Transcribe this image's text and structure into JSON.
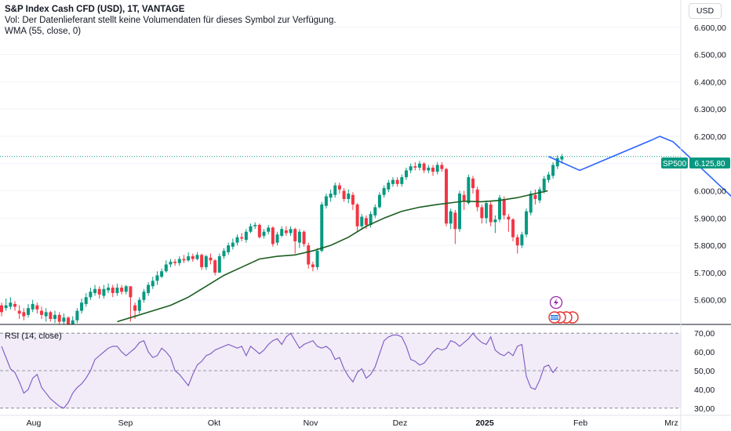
{
  "header": {
    "title": "S&P Index Cash CFD (USD), 1T, VANTAGE",
    "vol_note": "Vol: Der Datenlieferant stellt keine Volumendaten für dieses Symbol zur Verfügung.",
    "indicator": "WMA (55, close, 0)",
    "currency": "USD"
  },
  "rsi_panel": {
    "label": "RSI (14, close)"
  },
  "price_tag": {
    "symbol": "SP500",
    "price": "6.125,80"
  },
  "colors": {
    "up": "#089981",
    "down": "#f23645",
    "wma": "#1b5e20",
    "rsi": "#7e57c2",
    "rsi_band": "#ede7f6",
    "projection": "#2962ff",
    "tag": "#089981"
  },
  "event_icons": [
    "lightning-icon",
    "us-flag-icon"
  ],
  "chart_data": [
    {
      "type": "candlestick",
      "name": "S&P Index Cash CFD (USD), 1T, VANTAGE",
      "y_ticks": [
        "5.600,00",
        "5.700,00",
        "5.800,00",
        "5.900,00",
        "6.000,00",
        "6.100,00",
        "6.200,00",
        "6.300,00",
        "6.400,00",
        "6.500,00",
        "6.600,00"
      ],
      "y_range": [
        5510,
        6700
      ],
      "x_ticks": [
        {
          "label": "Aug",
          "bold": false
        },
        {
          "label": "Sep",
          "bold": false
        },
        {
          "label": "Okt",
          "bold": false
        },
        {
          "label": "Nov",
          "bold": false
        },
        {
          "label": "Dez",
          "bold": false
        },
        {
          "label": "2025",
          "bold": true
        },
        {
          "label": "Feb",
          "bold": false
        },
        {
          "label": "Mrz",
          "bold": false
        }
      ],
      "last_price": 6125.8,
      "candles": [
        [
          5580,
          5555,
          5590,
          5540
        ],
        [
          5570,
          5580,
          5605,
          5560
        ],
        [
          5575,
          5590,
          5610,
          5565
        ],
        [
          5585,
          5575,
          5595,
          5560
        ],
        [
          5560,
          5550,
          5580,
          5530
        ],
        [
          5555,
          5540,
          5570,
          5525
        ],
        [
          5545,
          5570,
          5585,
          5535
        ],
        [
          5565,
          5585,
          5600,
          5555
        ],
        [
          5580,
          5565,
          5590,
          5550
        ],
        [
          5560,
          5545,
          5575,
          5530
        ],
        [
          5540,
          5555,
          5570,
          5520
        ],
        [
          5555,
          5530,
          5560,
          5520
        ],
        [
          5530,
          5545,
          5560,
          5515
        ],
        [
          5545,
          5520,
          5555,
          5510
        ],
        [
          5520,
          5535,
          5550,
          5510
        ],
        [
          5535,
          5510,
          5540,
          5505
        ],
        [
          5510,
          5525,
          5540,
          5505
        ],
        [
          5525,
          5560,
          5570,
          5515
        ],
        [
          5560,
          5590,
          5605,
          5550
        ],
        [
          5585,
          5610,
          5625,
          5575
        ],
        [
          5610,
          5630,
          5645,
          5600
        ],
        [
          5625,
          5640,
          5655,
          5615
        ],
        [
          5640,
          5620,
          5650,
          5605
        ],
        [
          5615,
          5640,
          5655,
          5605
        ],
        [
          5635,
          5645,
          5660,
          5625
        ],
        [
          5645,
          5625,
          5655,
          5610
        ],
        [
          5625,
          5645,
          5660,
          5615
        ],
        [
          5645,
          5630,
          5655,
          5620
        ],
        [
          5630,
          5650,
          5655,
          5620
        ],
        [
          5650,
          5610,
          5650,
          5520
        ],
        [
          5580,
          5560,
          5590,
          5530
        ],
        [
          5560,
          5600,
          5610,
          5550
        ],
        [
          5600,
          5630,
          5640,
          5590
        ],
        [
          5625,
          5655,
          5665,
          5615
        ],
        [
          5650,
          5670,
          5685,
          5640
        ],
        [
          5670,
          5690,
          5705,
          5655
        ],
        [
          5685,
          5705,
          5715,
          5680
        ],
        [
          5705,
          5730,
          5745,
          5700
        ],
        [
          5730,
          5740,
          5750,
          5720
        ],
        [
          5740,
          5735,
          5750,
          5725
        ],
        [
          5735,
          5750,
          5760,
          5725
        ],
        [
          5750,
          5745,
          5765,
          5735
        ],
        [
          5745,
          5760,
          5775,
          5740
        ],
        [
          5760,
          5750,
          5770,
          5740
        ],
        [
          5750,
          5765,
          5775,
          5745
        ],
        [
          5765,
          5720,
          5770,
          5710
        ],
        [
          5720,
          5760,
          5765,
          5710
        ],
        [
          5755,
          5745,
          5770,
          5730
        ],
        [
          5745,
          5700,
          5750,
          5690
        ],
        [
          5700,
          5760,
          5770,
          5700
        ],
        [
          5760,
          5780,
          5790,
          5750
        ],
        [
          5775,
          5800,
          5810,
          5765
        ],
        [
          5795,
          5810,
          5825,
          5785
        ],
        [
          5810,
          5830,
          5840,
          5800
        ],
        [
          5830,
          5825,
          5845,
          5815
        ],
        [
          5820,
          5850,
          5860,
          5810
        ],
        [
          5850,
          5870,
          5880,
          5845
        ],
        [
          5870,
          5875,
          5885,
          5860
        ],
        [
          5875,
          5830,
          5880,
          5825
        ],
        [
          5835,
          5850,
          5860,
          5825
        ],
        [
          5850,
          5865,
          5875,
          5840
        ],
        [
          5865,
          5805,
          5870,
          5795
        ],
        [
          5810,
          5840,
          5850,
          5800
        ],
        [
          5835,
          5860,
          5870,
          5830
        ],
        [
          5855,
          5845,
          5870,
          5835
        ],
        [
          5845,
          5860,
          5870,
          5835
        ],
        [
          5860,
          5815,
          5865,
          5770
        ],
        [
          5810,
          5850,
          5860,
          5790
        ],
        [
          5850,
          5805,
          5855,
          5795
        ],
        [
          5800,
          5730,
          5810,
          5715
        ],
        [
          5730,
          5720,
          5740,
          5705
        ],
        [
          5720,
          5780,
          5790,
          5710
        ],
        [
          5780,
          5950,
          5960,
          5775
        ],
        [
          5945,
          5980,
          5990,
          5935
        ],
        [
          5975,
          5990,
          6005,
          5960
        ],
        [
          5985,
          6020,
          6030,
          5975
        ],
        [
          6020,
          6005,
          6030,
          5990
        ],
        [
          6000,
          5970,
          6010,
          5960
        ],
        [
          5970,
          5990,
          6005,
          5955
        ],
        [
          5985,
          5950,
          5995,
          5930
        ],
        [
          5950,
          5870,
          5955,
          5850
        ],
        [
          5870,
          5905,
          5915,
          5860
        ],
        [
          5900,
          5875,
          5910,
          5860
        ],
        [
          5875,
          5915,
          5925,
          5865
        ],
        [
          5910,
          5940,
          5950,
          5900
        ],
        [
          5940,
          5985,
          5995,
          5935
        ],
        [
          5985,
          6010,
          6020,
          5975
        ],
        [
          6005,
          6030,
          6040,
          5995
        ],
        [
          6025,
          6040,
          6050,
          6015
        ],
        [
          6040,
          6025,
          6050,
          6015
        ],
        [
          6025,
          6050,
          6060,
          6015
        ],
        [
          6050,
          6075,
          6085,
          6040
        ],
        [
          6075,
          6090,
          6100,
          6065
        ],
        [
          6090,
          6085,
          6105,
          6075
        ],
        [
          6085,
          6100,
          6110,
          6075
        ],
        [
          6100,
          6075,
          6105,
          6065
        ],
        [
          6075,
          6085,
          6095,
          6065
        ],
        [
          6085,
          6070,
          6095,
          6055
        ],
        [
          6070,
          6095,
          6105,
          6060
        ],
        [
          6095,
          6080,
          6105,
          6070
        ],
        [
          6080,
          5880,
          6085,
          5870
        ],
        [
          5880,
          5925,
          5935,
          5860
        ],
        [
          5920,
          5860,
          5930,
          5805
        ],
        [
          5860,
          5990,
          6000,
          5850
        ],
        [
          5985,
          5960,
          6000,
          5930
        ],
        [
          5955,
          6050,
          6060,
          5950
        ],
        [
          6045,
          6010,
          6055,
          5990
        ],
        [
          6005,
          5940,
          6015,
          5925
        ],
        [
          5940,
          5900,
          5950,
          5880
        ],
        [
          5900,
          5955,
          5965,
          5880
        ],
        [
          5950,
          5885,
          5960,
          5870
        ],
        [
          5885,
          5895,
          5910,
          5845
        ],
        [
          5895,
          5975,
          5985,
          5885
        ],
        [
          5970,
          5910,
          5980,
          5895
        ],
        [
          5905,
          5895,
          5915,
          5850
        ],
        [
          5895,
          5830,
          5900,
          5815
        ],
        [
          5830,
          5800,
          5840,
          5770
        ],
        [
          5800,
          5840,
          5850,
          5790
        ],
        [
          5840,
          5925,
          5935,
          5830
        ],
        [
          5920,
          5990,
          6000,
          5910
        ],
        [
          5985,
          5970,
          6005,
          5950
        ],
        [
          5965,
          6005,
          6015,
          5955
        ],
        [
          6000,
          6045,
          6055,
          5990
        ],
        [
          6040,
          6060,
          6070,
          6030
        ],
        [
          6055,
          6095,
          6105,
          6045
        ],
        [
          6090,
          6120,
          6130,
          6080
        ],
        [
          6115,
          6125.8,
          6135,
          6100
        ]
      ],
      "wma": [
        [
          65,
          5520
        ],
        [
          75,
          5540
        ],
        [
          85,
          5560
        ],
        [
          95,
          5580
        ],
        [
          105,
          5610
        ],
        [
          115,
          5650
        ],
        [
          125,
          5690
        ],
        [
          135,
          5720
        ],
        [
          145,
          5750
        ],
        [
          155,
          5760
        ],
        [
          165,
          5765
        ],
        [
          175,
          5780
        ],
        [
          185,
          5800
        ],
        [
          195,
          5830
        ],
        [
          205,
          5870
        ],
        [
          215,
          5900
        ],
        [
          225,
          5925
        ],
        [
          235,
          5940
        ],
        [
          245,
          5950
        ],
        [
          255,
          5958
        ],
        [
          260,
          5962
        ],
        [
          270,
          5960
        ],
        [
          280,
          5965
        ],
        [
          290,
          5975
        ],
        [
          300,
          5990
        ],
        [
          307,
          6000
        ]
      ],
      "projection": [
        [
          123,
          6125.8
        ],
        [
          130,
          6075
        ],
        [
          146,
          6185
        ],
        [
          148,
          6200
        ],
        [
          151,
          6180
        ],
        [
          168,
          5920
        ],
        [
          172,
          5945
        ]
      ]
    },
    {
      "type": "line",
      "name": "RSI (14, close)",
      "y_ticks": [
        "30,00",
        "40,00",
        "50,00",
        "60,00",
        "70,00"
      ],
      "y_range": [
        27,
        73
      ],
      "bands": [
        30,
        50,
        70
      ],
      "values": [
        63,
        57,
        51,
        49,
        44,
        38,
        40,
        46,
        48,
        41,
        38,
        35,
        33,
        31,
        30,
        33,
        38,
        41,
        43,
        46,
        50,
        56,
        58,
        60,
        62,
        63,
        63,
        60,
        58,
        60,
        62,
        65,
        66,
        60,
        57,
        58,
        62,
        60,
        57,
        50,
        48,
        45,
        42,
        48,
        53,
        55,
        58,
        59,
        61,
        62,
        63,
        64,
        63,
        62,
        63,
        58,
        63,
        61,
        59,
        61,
        64,
        66,
        67,
        64,
        68,
        70,
        66,
        62,
        64,
        65,
        66,
        63,
        62,
        63,
        61,
        56,
        57,
        51,
        47,
        44,
        49,
        51,
        46,
        48,
        52,
        59,
        66,
        68,
        69,
        69,
        68,
        63,
        56,
        55,
        53,
        54,
        57,
        60,
        62,
        61,
        62,
        66,
        65,
        63,
        65,
        67,
        70,
        67,
        65,
        64,
        68,
        61,
        59,
        58,
        60,
        58,
        63,
        64,
        47,
        41,
        40,
        45,
        52,
        53,
        49,
        52
      ]
    }
  ]
}
